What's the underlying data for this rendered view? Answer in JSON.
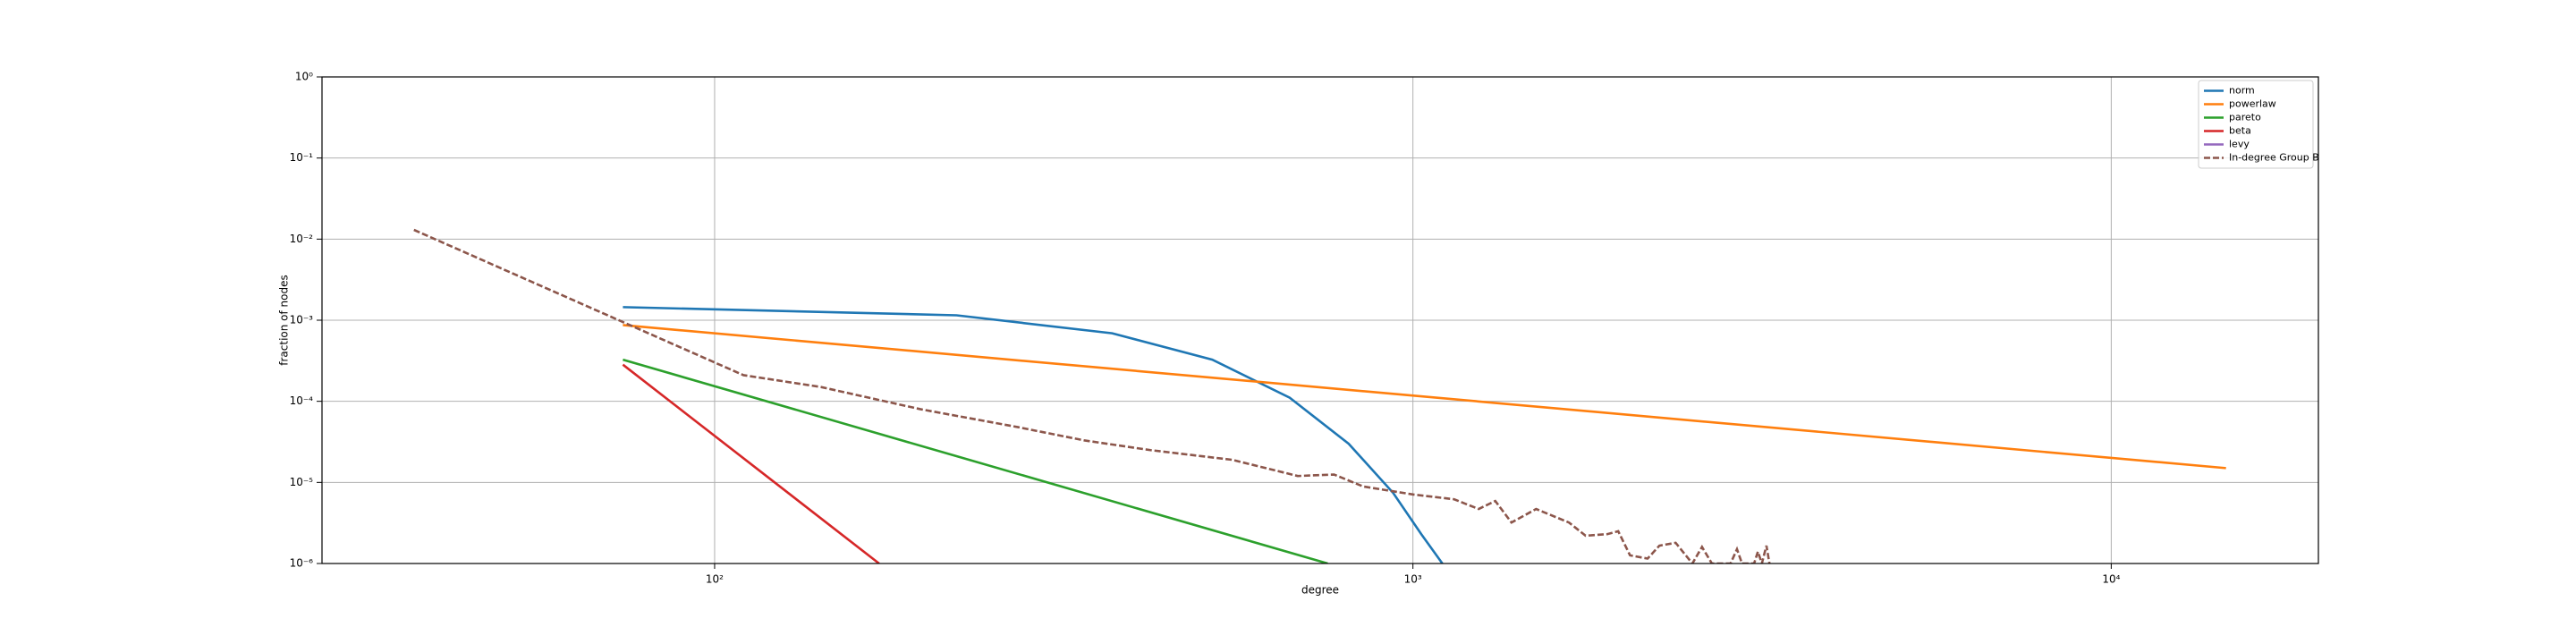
{
  "chart_data": {
    "type": "line",
    "xlabel": "degree",
    "ylabel": "fraction of nodes",
    "xscale": "log",
    "yscale": "log",
    "grid": true,
    "legend": "upper right",
    "xlim": [
      27.4,
      19800
    ],
    "ylim": [
      1e-06,
      1
    ],
    "xticks": [
      {
        "value": 100,
        "label": "10²"
      },
      {
        "value": 1000,
        "label": "10³"
      },
      {
        "value": 10000,
        "label": "10⁴"
      }
    ],
    "yticks": [
      {
        "value": 1e-06,
        "label": "10⁻⁶"
      },
      {
        "value": 1e-05,
        "label": "10⁻⁵"
      },
      {
        "value": 0.0001,
        "label": "10⁻⁴"
      },
      {
        "value": 0.001,
        "label": "10⁻³"
      },
      {
        "value": 0.01,
        "label": "10⁻²"
      },
      {
        "value": 0.1,
        "label": "10⁻¹"
      },
      {
        "value": 1,
        "label": "10⁰"
      }
    ],
    "series": [
      {
        "name": "norm",
        "color": "#1f77b4",
        "linestyle": "solid",
        "x": [
          73.9,
          222,
          371,
          516,
          666,
          809,
          937,
          1028,
          1102
        ],
        "values": [
          0.00145,
          0.00115,
          0.00069,
          0.000326,
          0.000111,
          3e-05,
          7.4e-06,
          2.3e-06,
          1e-06
        ]
      },
      {
        "name": "powerlaw",
        "color": "#ff7f0e",
        "linestyle": "solid",
        "x": [
          73.9,
          14600
        ],
        "values": [
          0.00087,
          1.5e-05
        ]
      },
      {
        "name": "pareto",
        "color": "#2ca02c",
        "linestyle": "solid",
        "x": [
          73.9,
          755
        ],
        "values": [
          0.000326,
          1e-06
        ]
      },
      {
        "name": "beta",
        "color": "#d62728",
        "linestyle": "solid",
        "x": [
          73.9,
          172
        ],
        "values": [
          0.000283,
          1e-06
        ]
      },
      {
        "name": "levy",
        "color": "#9467bd",
        "linestyle": "solid",
        "x": [],
        "values": []
      },
      {
        "name": "In-degree Group B",
        "color": "#8c564b",
        "linestyle": "dashed",
        "x": [
          37.1,
          73.9,
          110,
          142,
          197,
          272,
          338,
          421,
          551,
          684,
          771,
          849,
          1000,
          1145,
          1242,
          1312,
          1384,
          1501,
          1673,
          1767,
          1897,
          1968,
          2046,
          2168,
          2254,
          2378,
          2513,
          2594,
          2680,
          2850,
          2911,
          2960,
          3080,
          3119,
          3160,
          3208,
          3240
        ],
        "values": [
          0.013,
          0.00095,
          0.00021,
          0.00015,
          8e-05,
          4.8e-05,
          3.3e-05,
          2.5e-05,
          1.9e-05,
          1.2e-05,
          1.25e-05,
          8.9e-06,
          7.1e-06,
          6.2e-06,
          4.7e-06,
          5.9e-06,
          3.2e-06,
          4.7e-06,
          3.2e-06,
          2.2e-06,
          2.3e-06,
          2.5e-06,
          1.26e-06,
          1.15e-06,
          1.66e-06,
          1.8e-06,
          1e-06,
          1.6e-06,
          1e-06,
          1e-06,
          1.5e-06,
          1e-06,
          1e-06,
          1.4e-06,
          1e-06,
          1.66e-06,
          1e-06
        ]
      }
    ]
  }
}
